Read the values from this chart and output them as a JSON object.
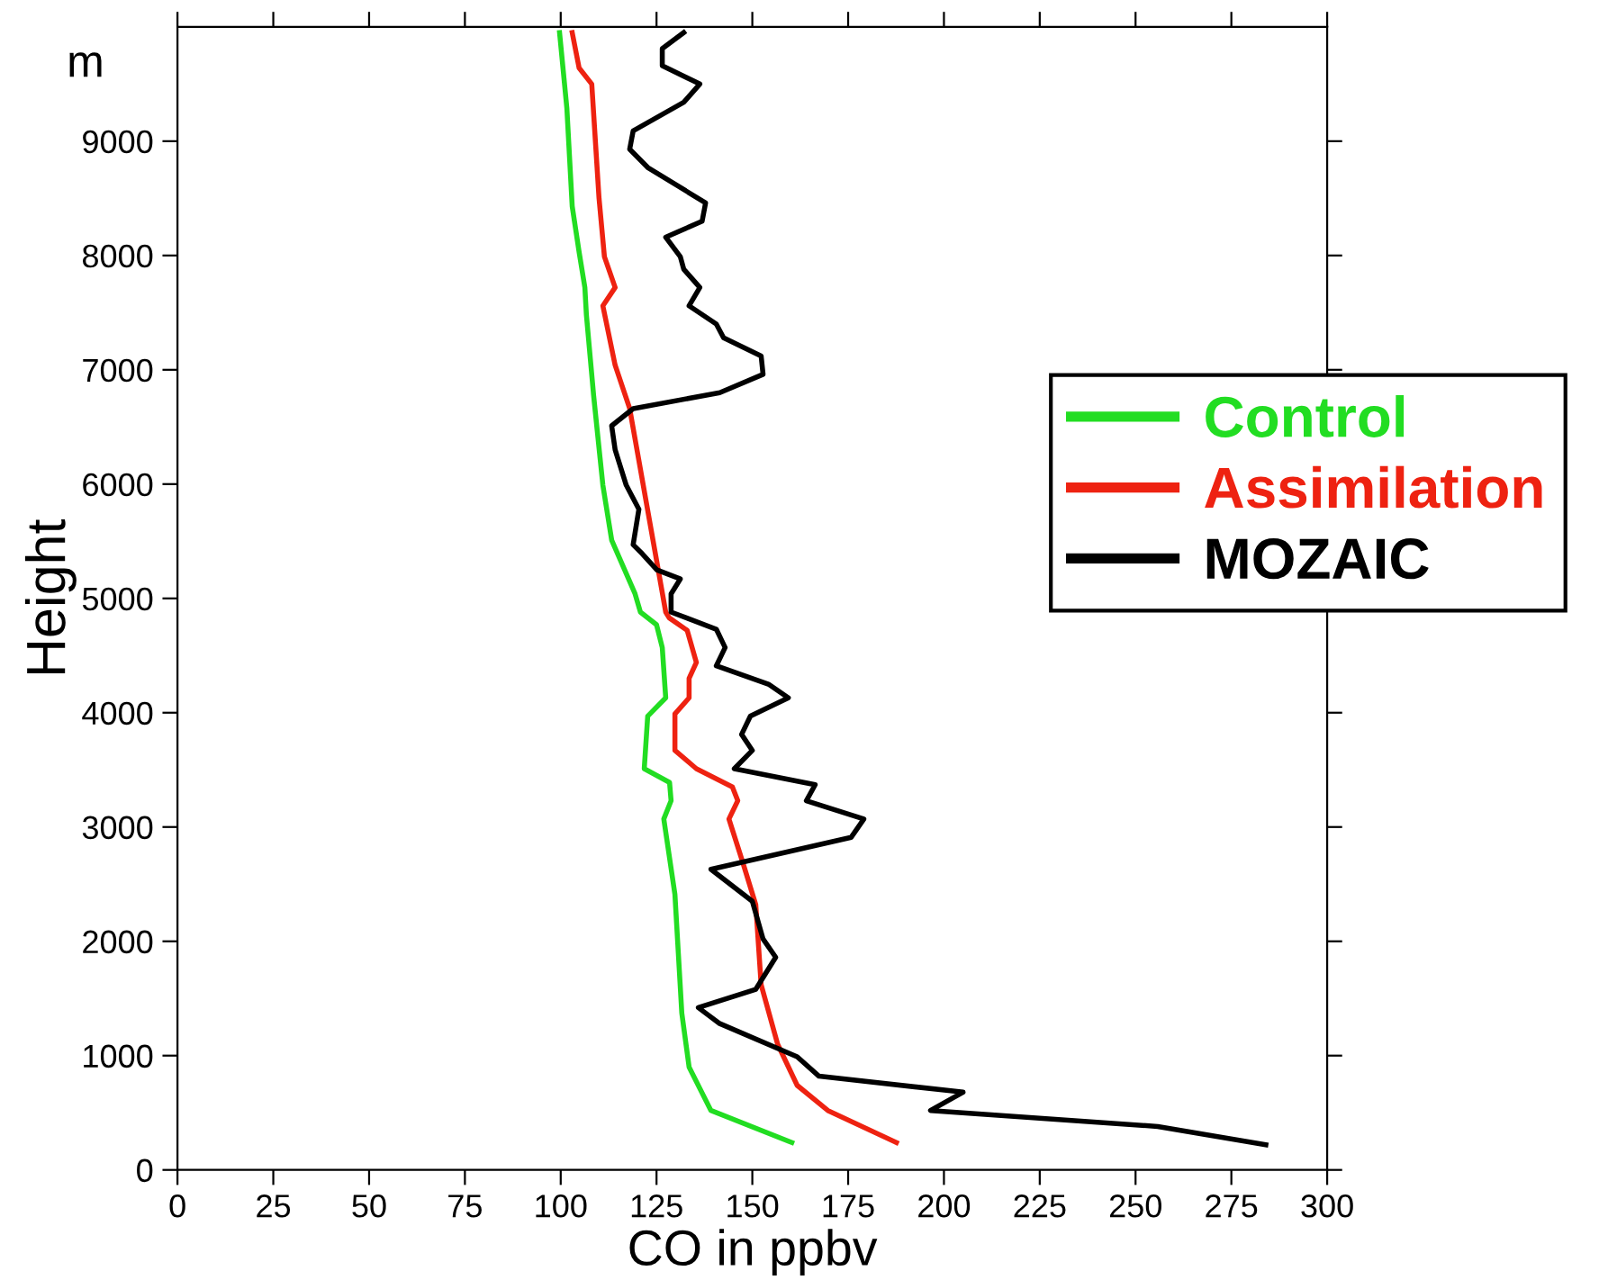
{
  "chart_data": {
    "type": "line",
    "xlabel": "CO in ppbv",
    "ylabel": "Height",
    "annotations": [
      "m"
    ],
    "xlim": [
      0,
      300
    ],
    "xticks": [
      0,
      25,
      50,
      75,
      100,
      125,
      150,
      175,
      200,
      225,
      250,
      275,
      300
    ],
    "ylim": [
      0,
      10000
    ],
    "yticks": [
      0,
      1000,
      2000,
      3000,
      4000,
      5000,
      6000,
      7000,
      8000,
      9000
    ],
    "grid": false,
    "legend": "right",
    "marker": "none",
    "line_style": "solid",
    "series": [
      {
        "name": "Control",
        "color": "#22dd22",
        "x": [
          99.7,
          101.6,
          103,
          104.8,
          106.3,
          106.7,
          108.6,
          111,
          113.3,
          119.4,
          120.8,
          125,
          126.5,
          127.4,
          122.7,
          121.8,
          128.4,
          128.8,
          126.9,
          129.8,
          130.7,
          131.6,
          133.5,
          139.2,
          160.3
        ],
        "values": [
          9950,
          9290,
          8430,
          8030,
          7720,
          7480,
          6770,
          5990,
          5510,
          5040,
          4880,
          4770,
          4570,
          4130,
          3970,
          3510,
          3390,
          3230,
          3070,
          2410,
          1890,
          1370,
          900,
          520,
          240
        ]
      },
      {
        "name": "Assimilation",
        "color": "#ee2211",
        "x": [
          103,
          104.8,
          108.1,
          110,
          111.4,
          114.2,
          111,
          114.2,
          118,
          127.4,
          128.3,
          133,
          135.4,
          133.5,
          133.5,
          129.8,
          129.8,
          135.4,
          144.8,
          146.2,
          143.9,
          147.6,
          150.9,
          152.3,
          156.6,
          161.7,
          169.7,
          187.6
        ],
        "values": [
          9950,
          9640,
          9500,
          8500,
          7990,
          7720,
          7560,
          7040,
          6660,
          4880,
          4830,
          4720,
          4440,
          4300,
          4130,
          3990,
          3670,
          3510,
          3350,
          3230,
          3070,
          2680,
          2320,
          1620,
          1100,
          740,
          520,
          240
        ]
      },
      {
        "name": "MOZAIC",
        "color": "#000000",
        "x": [
          132.1,
          126.5,
          126.5,
          136.3,
          132.1,
          118.9,
          118,
          122.7,
          137.8,
          136.9,
          127.4,
          131.2,
          132.1,
          136.3,
          133.5,
          140.6,
          142.5,
          152.3,
          152.8,
          141.5,
          118.9,
          113.3,
          114.2,
          117.1,
          120.4,
          118.9,
          121.3,
          125.1,
          131.2,
          128.8,
          128.8,
          140.6,
          142.9,
          140.6,
          154.2,
          159.4,
          149.5,
          147.2,
          150,
          145.3,
          166.4,
          164.1,
          179.1,
          175.8,
          139.2,
          150,
          152.8,
          156.1,
          150.9,
          135.9,
          141.5,
          161.7,
          167.4,
          205,
          196.5,
          255.8,
          284
        ],
        "values": [
          9950,
          9810,
          9660,
          9500,
          9340,
          9090,
          8930,
          8770,
          8460,
          8300,
          8160,
          7990,
          7880,
          7720,
          7560,
          7400,
          7280,
          7120,
          6960,
          6800,
          6660,
          6510,
          6300,
          5990,
          5780,
          5470,
          5390,
          5250,
          5170,
          5040,
          4880,
          4730,
          4570,
          4410,
          4250,
          4130,
          3970,
          3810,
          3670,
          3510,
          3370,
          3230,
          3070,
          2910,
          2630,
          2350,
          2020,
          1860,
          1580,
          1420,
          1280,
          990,
          820,
          680,
          520,
          380,
          220
        ]
      }
    ]
  }
}
